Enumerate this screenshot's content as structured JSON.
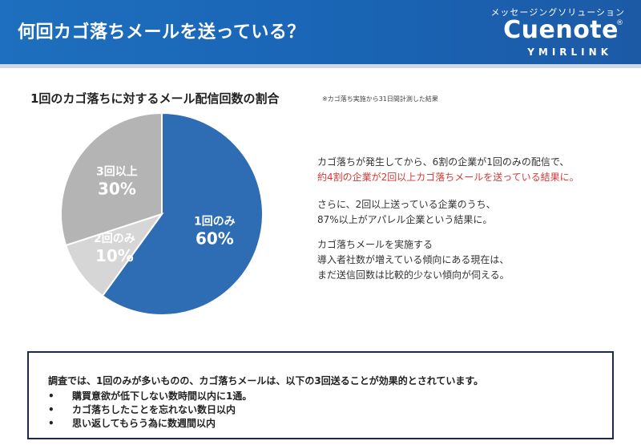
{
  "header": {
    "title": "何回カゴ落ちメールを送っている？",
    "brand_tagline": "メッセージングソリューション",
    "brand_logo": "Cuenote",
    "brand_reg": "®",
    "brand_sub": "YMIRLINK"
  },
  "chart_data": {
    "type": "pie",
    "title": "1回のカゴ落ちに対するメール配信回数の割合",
    "note": "※カゴ落ち実施から31日間計測した結果",
    "unit": "%",
    "slices": [
      {
        "label": "1回のみ",
        "value": 60,
        "display": "60%",
        "color": "#2e6db4",
        "text_color": "#ffffff"
      },
      {
        "label": "2回のみ",
        "value": 10,
        "display": "10%",
        "color": "#d6d6d6",
        "text_color": "#ffffff"
      },
      {
        "label": "3回以上",
        "value": 30,
        "display": "30%",
        "color": "#b4b4b4",
        "text_color": "#ffffff"
      }
    ]
  },
  "description": {
    "p1_line1": "カゴ落ちが発生してから、6割の企業が1回のみの配信で、",
    "p1_line2": "約4割の企業が2回以上カゴ落ちメールを送っている結果に。",
    "p2_line1": "さらに、2回以上送っている企業のうち、",
    "p2_line2": "87%以上がアパレル企業という結果に。",
    "p3_line1": "カゴ落ちメールを実施する",
    "p3_line2": "導入者社数が増えている傾向にある現在は、",
    "p3_line3": "まだ送信回数は比較的少ない傾向が伺える。"
  },
  "summary": {
    "lead": "調査では、1回のみが多いものの、カゴ落ちメールは、以下の3回送ることが効果的とされています。",
    "bullet": "•",
    "items": [
      "購買意欲が低下しない数時間以内に1通。",
      "カゴ落ちしたことを忘れない数日以内",
      "思い返してもらう為に数週間以内"
    ]
  }
}
